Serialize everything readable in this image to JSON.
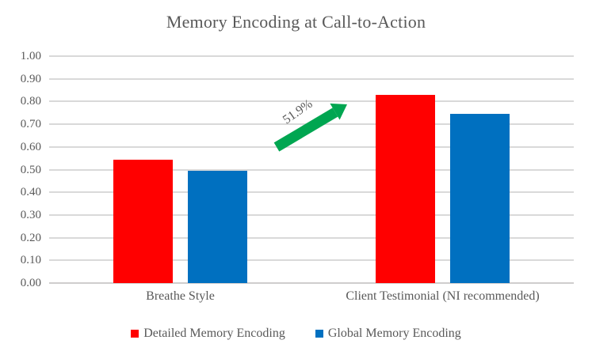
{
  "title": "Memory Encoding at Call-to-Action",
  "chart_data": {
    "type": "bar",
    "categories": [
      "Breathe Style",
      "Client Testimonial (NI recommended)"
    ],
    "series": [
      {
        "name": "Detailed Memory Encoding",
        "color": "#FF0000",
        "values": [
          0.545,
          0.828
        ]
      },
      {
        "name": "Global Memory Encoding",
        "color": "#0070C0",
        "values": [
          0.495,
          0.745
        ]
      }
    ],
    "xlabel": "",
    "ylabel": "",
    "ylim": [
      0,
      1
    ],
    "ytick_step": 0.1,
    "yticks": [
      "0.00",
      "0.10",
      "0.20",
      "0.30",
      "0.40",
      "0.50",
      "0.60",
      "0.70",
      "0.80",
      "0.90",
      "1.00"
    ],
    "grid": true,
    "legend_position": "bottom",
    "annotation": {
      "text": "51.9%",
      "shape": "up-right-arrow",
      "color": "#00A651"
    }
  },
  "colors": {
    "background": "#FFFFFF",
    "text": "#595959",
    "gridline": "#D9D9D9",
    "axis_line": "#CFCDCD"
  }
}
